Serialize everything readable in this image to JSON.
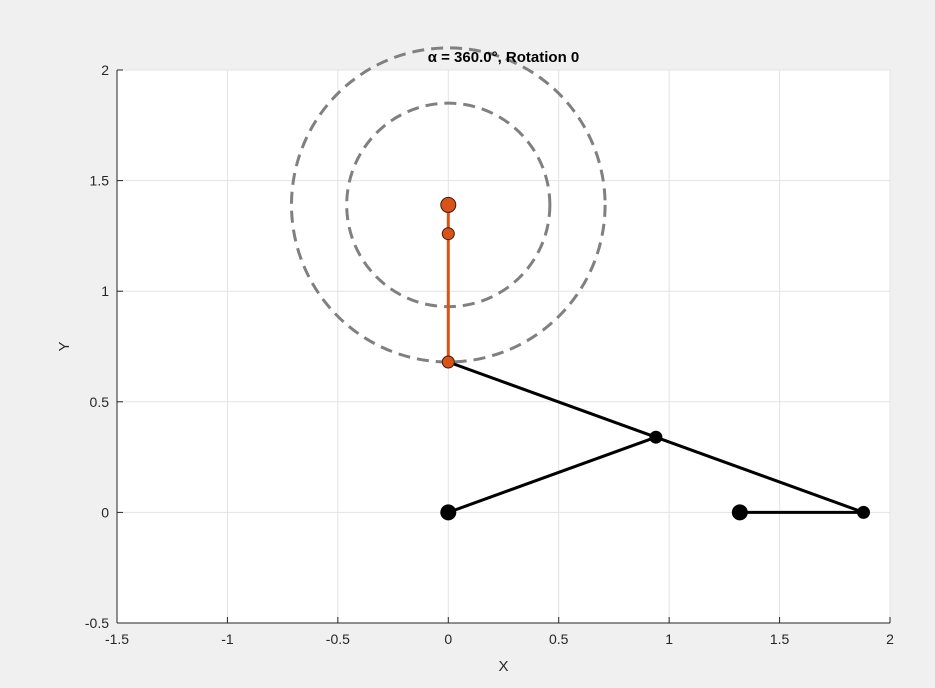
{
  "chart_data": {
    "type": "line",
    "title": "α = 360.0°, Rotation 0",
    "xlabel": "X",
    "ylabel": "Y",
    "xlim": [
      -1.5,
      2
    ],
    "ylim": [
      -0.5,
      2
    ],
    "xticks": [
      -1.5,
      -1,
      -0.5,
      0,
      0.5,
      1,
      1.5,
      2
    ],
    "yticks": [
      -0.5,
      0,
      0.5,
      1,
      1.5,
      2
    ],
    "xtick_labels": [
      "-1.5",
      "-1",
      "-0.5",
      "0",
      "0.5",
      "1",
      "1.5",
      "2"
    ],
    "ytick_labels": [
      "-0.5",
      "0",
      "0.5",
      "1",
      "1.5",
      "2"
    ],
    "grid": true,
    "circles": [
      {
        "cx": 0,
        "cy": 1.39,
        "r": 0.71,
        "color": "#808080",
        "style": "dashed"
      },
      {
        "cx": 0,
        "cy": 1.39,
        "r": 0.46,
        "color": "#808080",
        "style": "dashed"
      }
    ],
    "black_links": [
      {
        "x": [
          0,
          0.94
        ],
        "y": [
          0,
          0.34
        ]
      },
      {
        "x": [
          0,
          1.88
        ],
        "y": [
          0.68,
          0
        ]
      },
      {
        "x": [
          1.32,
          1.88
        ],
        "y": [
          0,
          0
        ]
      }
    ],
    "orange_link": {
      "x": [
        0,
        0,
        0
      ],
      "y": [
        0.68,
        1.26,
        1.39
      ]
    },
    "black_points": [
      {
        "x": 0,
        "y": 0,
        "size": "large"
      },
      {
        "x": 1.32,
        "y": 0,
        "size": "large"
      },
      {
        "x": 0.94,
        "y": 0.34,
        "size": "small"
      },
      {
        "x": 1.88,
        "y": 0,
        "size": "small"
      }
    ],
    "orange_points": [
      {
        "x": 0,
        "y": 0.68,
        "size": "small"
      },
      {
        "x": 0,
        "y": 1.26,
        "size": "small"
      },
      {
        "x": 0,
        "y": 1.39,
        "size": "large"
      }
    ],
    "colors": {
      "orange": "#d95319",
      "black": "#000000",
      "circle": "#808080",
      "grid": "#e3e3e3",
      "axes": "#262626"
    }
  }
}
